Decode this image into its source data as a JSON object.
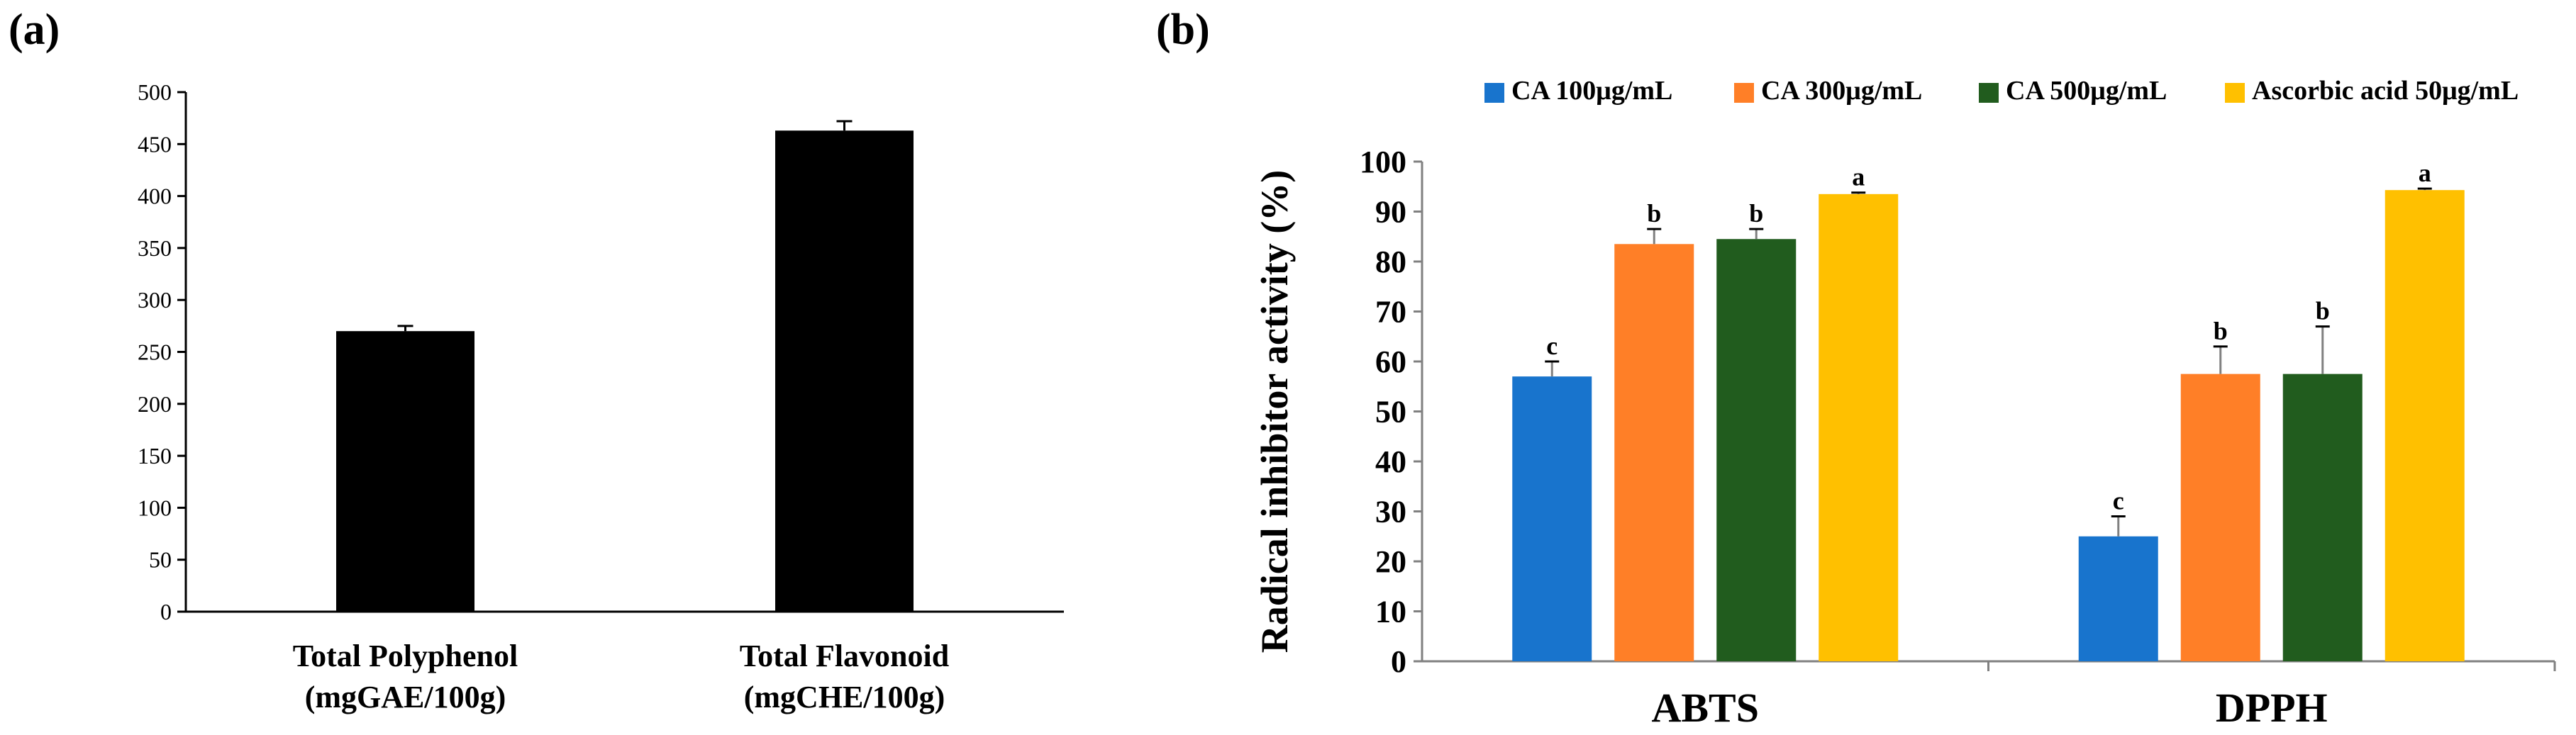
{
  "chart_data": [
    {
      "type": "bar",
      "panel_label": "(a)",
      "title": "",
      "xlabel": "",
      "ylabel": "",
      "categories": [
        [
          "Total Polyphenol",
          "(mgGAE/100g)"
        ],
        [
          "Total Flavonoid",
          "(mgCHE/100g)"
        ]
      ],
      "values": [
        270,
        463
      ],
      "errors": [
        5,
        9
      ],
      "ylim": [
        0,
        500
      ],
      "yticks": [
        0,
        50,
        100,
        150,
        200,
        250,
        300,
        350,
        400,
        450,
        500
      ],
      "grid": false,
      "legend": "none",
      "colors": {
        "bar": "#000000",
        "axis": "#000000"
      }
    },
    {
      "type": "bar",
      "panel_label": "(b)",
      "title": "",
      "xlabel": "",
      "ylabel": "Radical inhibitor activity (%)",
      "categories": [
        "ABTS",
        "DPPH"
      ],
      "series": [
        {
          "name": "CA 100μg/mL",
          "color": "#1874CD",
          "values": [
            57,
            25
          ],
          "errors": [
            3,
            4
          ],
          "letters": [
            "c",
            "c"
          ]
        },
        {
          "name": "CA 300μg/mL",
          "color": "#FF7F27",
          "values": [
            83.5,
            57.5
          ],
          "errors": [
            3,
            5.5
          ],
          "letters": [
            "b",
            "b"
          ]
        },
        {
          "name": "CA 500μg/mL",
          "color": "#215C1E",
          "values": [
            84.5,
            57.5
          ],
          "errors": [
            2,
            9.5
          ],
          "letters": [
            "b",
            "b"
          ]
        },
        {
          "name": "Ascorbic acid 50μg/mL",
          "color": "#FFC000",
          "values": [
            93.5,
            94.3
          ],
          "errors": [
            0.3,
            0.3
          ],
          "letters": [
            "a",
            "a"
          ]
        }
      ],
      "ylim": [
        0,
        100
      ],
      "yticks": [
        0,
        10,
        20,
        30,
        40,
        50,
        60,
        70,
        80,
        90,
        100
      ],
      "grid": false,
      "legend": "top",
      "colors": {
        "axis": "#808080",
        "error_bar": "#808080"
      }
    }
  ]
}
